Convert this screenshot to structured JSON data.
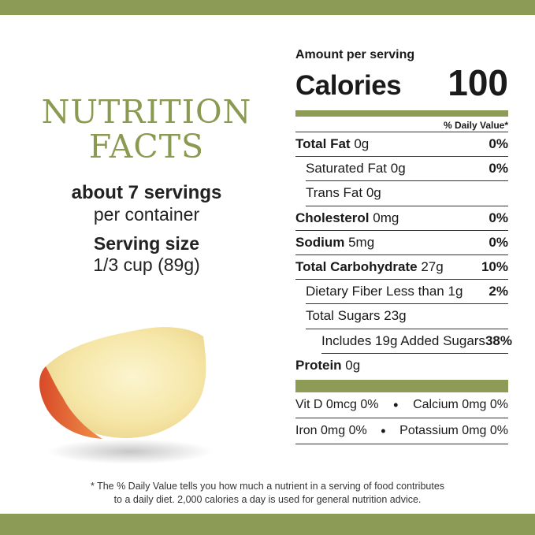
{
  "colors": {
    "accent": "#8c9c56"
  },
  "left": {
    "title_line1": "NUTRITION",
    "title_line2": "FACTS",
    "servings": "about 7 servings",
    "per_container": "per container",
    "serving_size_label": "Serving size",
    "serving_size_value": "1/3 cup (89g)"
  },
  "panel": {
    "amount_per_serving": "Amount per serving",
    "calories_label": "Calories",
    "calories_value": "100",
    "daily_value_header": "% Daily Value*",
    "rows": [
      {
        "label": "Total Fat",
        "amount": "0g",
        "percent": "0%"
      },
      {
        "label": "Saturated Fat",
        "amount": "0g",
        "percent": "0%"
      },
      {
        "label": "Trans Fat",
        "amount": "0g",
        "percent": ""
      },
      {
        "label": "Cholesterol",
        "amount": "0mg",
        "percent": "0%"
      },
      {
        "label": "Sodium",
        "amount": "5mg",
        "percent": "0%"
      },
      {
        "label": "Total Carbohydrate",
        "amount": "27g",
        "percent": "10%"
      },
      {
        "label": "Dietary Fiber Less than",
        "amount": "1g",
        "percent": "2%"
      },
      {
        "label": "Total Sugars",
        "amount": "23g",
        "percent": ""
      },
      {
        "label": "Includes 19g Added Sugars",
        "amount": "",
        "percent": "38%"
      },
      {
        "label": "Protein",
        "amount": "0g",
        "percent": ""
      }
    ],
    "vitamins": [
      {
        "left": "Vit D 0mcg 0%",
        "right": "Calcium 0mg 0%"
      },
      {
        "left": "Iron 0mg 0%",
        "right": "Potassium 0mg 0%"
      }
    ],
    "separator": "•"
  },
  "footnote": {
    "line1": "* The % Daily Value tells you how much a nutrient in a serving of food contributes",
    "line2": "to a daily diet. 2,000 calories a day is used for general nutrition advice."
  }
}
